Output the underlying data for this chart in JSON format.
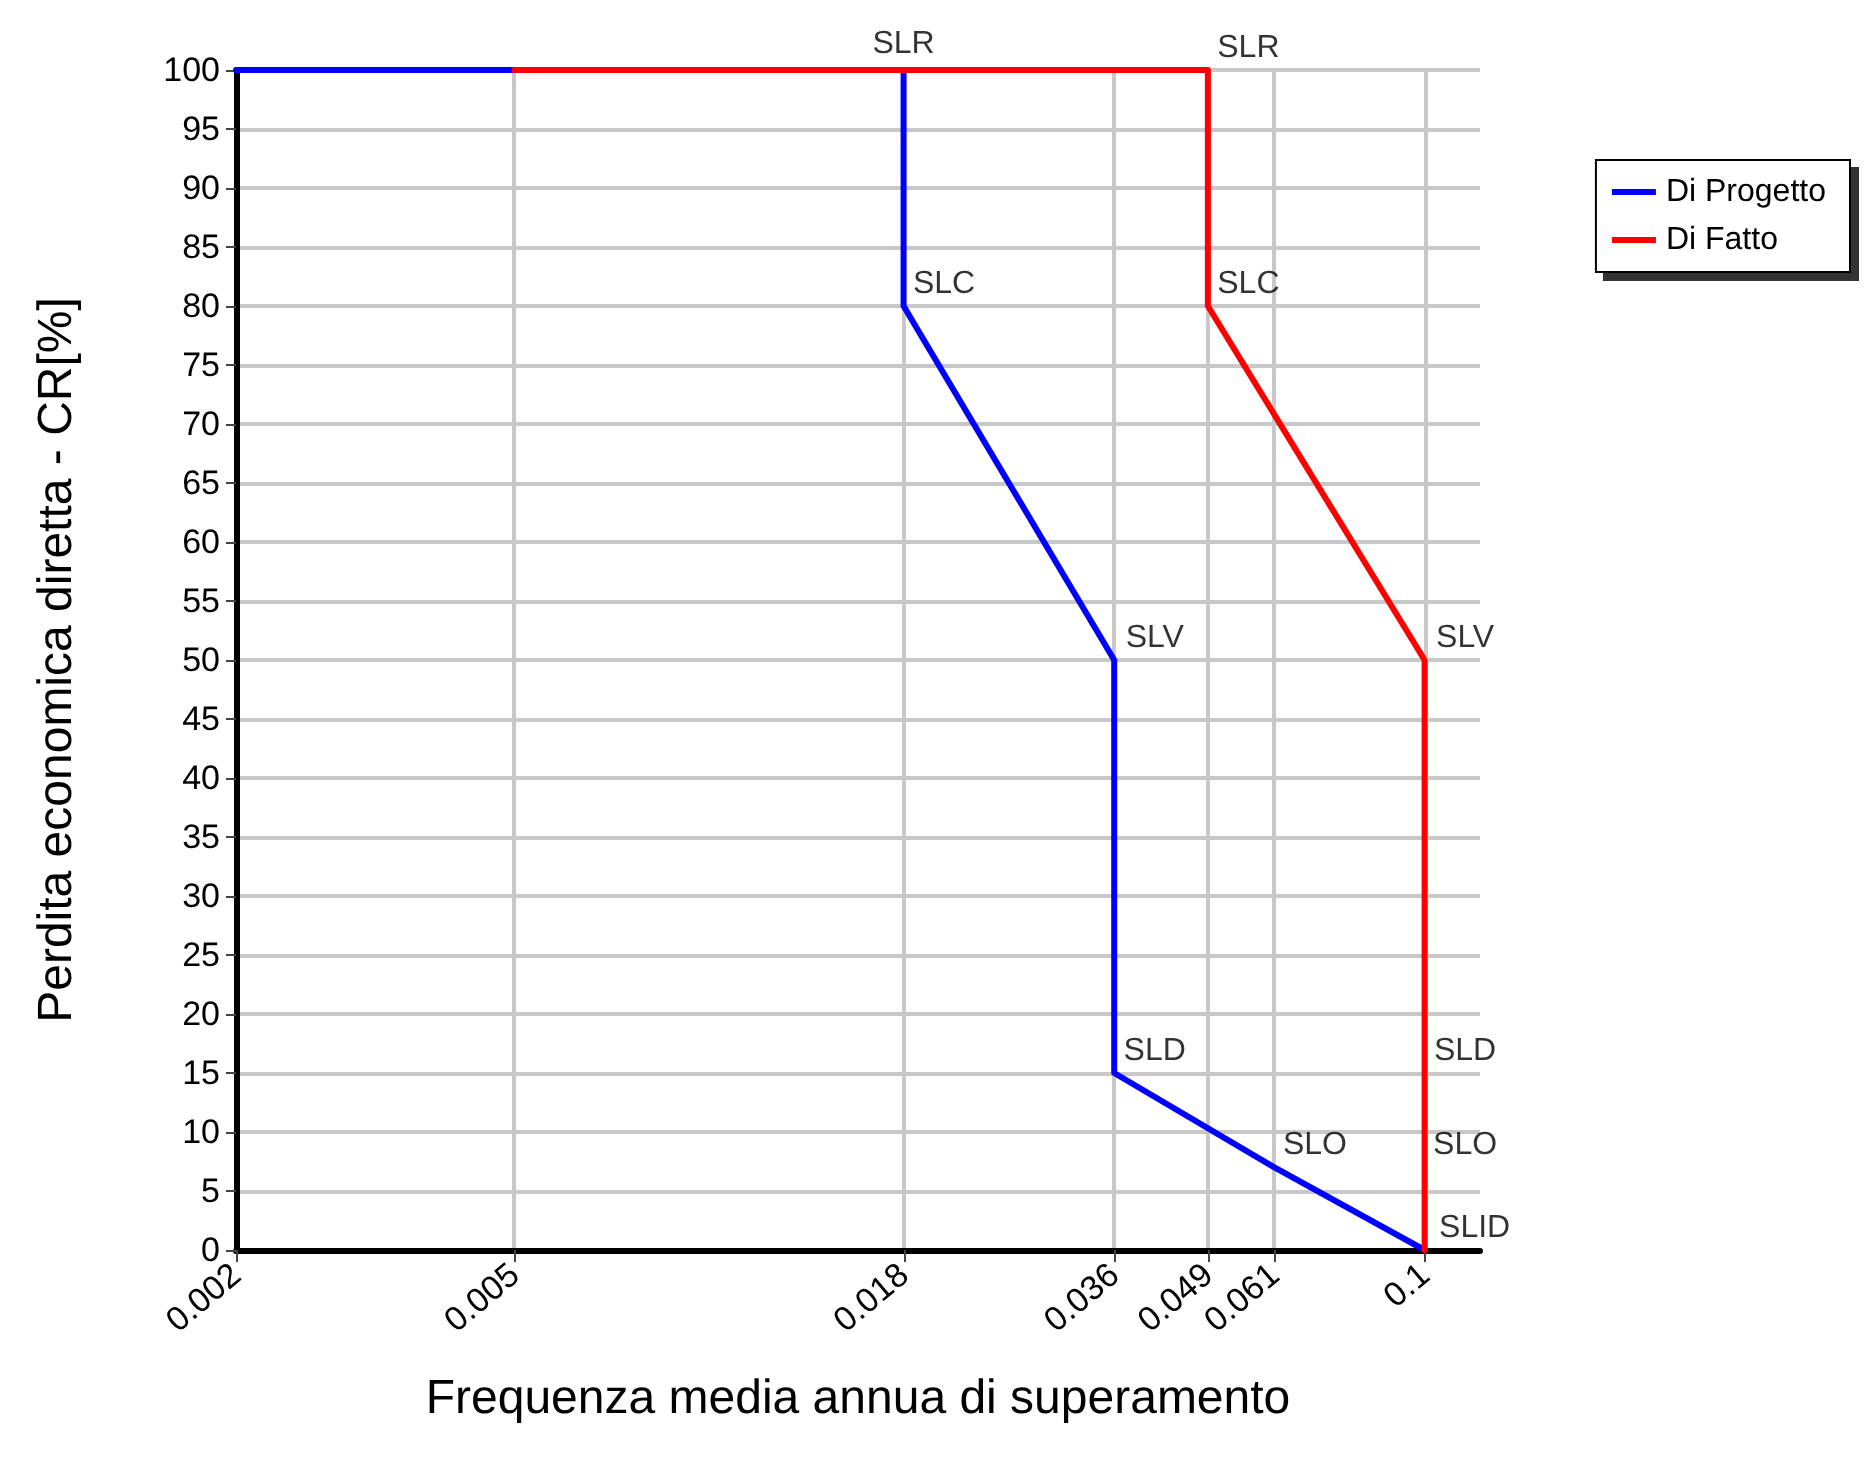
{
  "chart_data": {
    "type": "line",
    "xlabel": "Frequenza media annua di superamento",
    "ylabel": "Perdita economica diretta - CR[%]",
    "series": [
      {
        "name": "Di Progetto",
        "color": "#0000ff",
        "x": [
          0.002,
          0.018,
          0.018,
          0.036,
          0.036,
          0.061,
          0.1
        ],
        "values": [
          100,
          100,
          80,
          50,
          15,
          7,
          0
        ]
      },
      {
        "name": "Di Fatto",
        "color": "#ff0000",
        "x": [
          0.005,
          0.049,
          0.049,
          0.1,
          0.1,
          0.1,
          0.1
        ],
        "values": [
          100,
          100,
          80,
          50,
          15,
          7,
          0
        ]
      }
    ],
    "annotations": [
      {
        "text": "SLR",
        "x": 0.018,
        "y": 100
      },
      {
        "text": "SLC",
        "x": 0.018,
        "y": 80
      },
      {
        "text": "SLV",
        "x": 0.036,
        "y": 50
      },
      {
        "text": "SLD",
        "x": 0.036,
        "y": 15
      },
      {
        "text": "SLO",
        "x": 0.061,
        "y": 7
      },
      {
        "text": "SLID",
        "x": 0.1,
        "y": 0
      },
      {
        "text": "SLR",
        "x": 0.049,
        "y": 100
      },
      {
        "text": "SLC",
        "x": 0.049,
        "y": 80
      },
      {
        "text": "SLV",
        "x": 0.1,
        "y": 50
      },
      {
        "text": "SLD",
        "x": 0.1,
        "y": 15
      },
      {
        "text": "SLO",
        "x": 0.1,
        "y": 7
      }
    ],
    "log": "x",
    "xlim": [
      0.002,
      0.12
    ],
    "xticks": [
      0.002,
      0.005,
      0.018,
      0.036,
      0.049,
      0.061,
      0.1
    ],
    "ylim": [
      0,
      100
    ],
    "yticks": [
      0,
      5,
      10,
      15,
      20,
      25,
      30,
      35,
      40,
      45,
      50,
      55,
      60,
      65,
      70,
      75,
      80,
      85,
      90,
      95,
      100
    ],
    "grid": true,
    "legend": "top right",
    "marker": "none",
    "line_style": "solid"
  }
}
